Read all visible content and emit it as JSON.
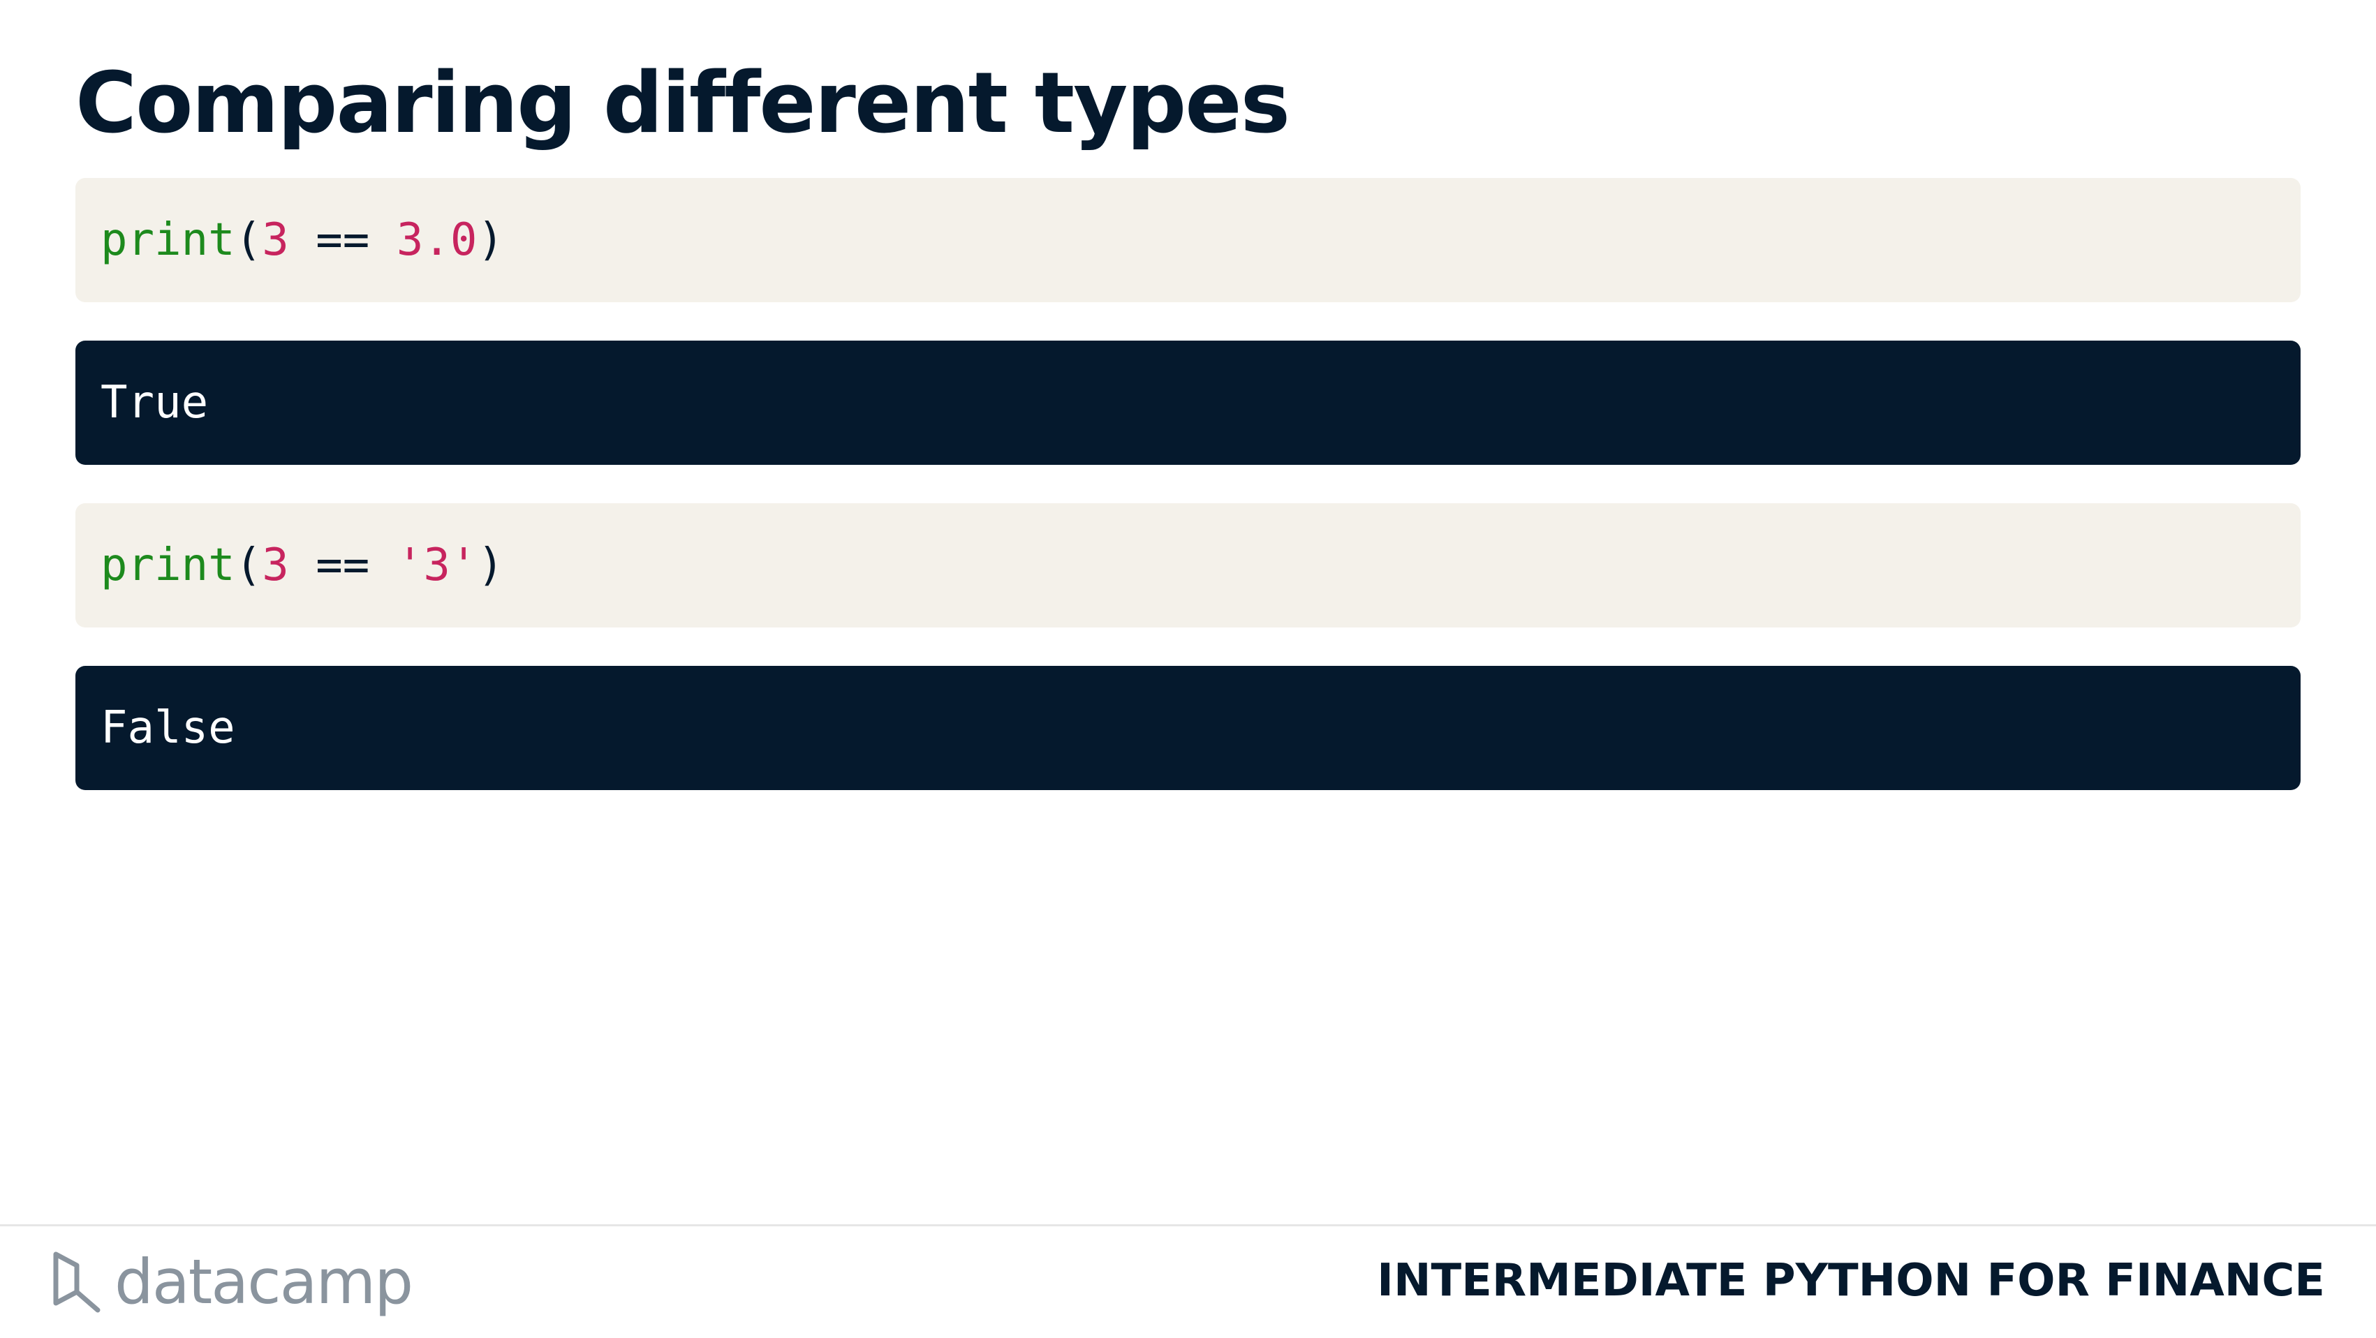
{
  "slide": {
    "title": "Comparing different types"
  },
  "blocks": {
    "code_1": {
      "func": "print",
      "open": "(",
      "left": "3",
      "op": " == ",
      "right": "3.0",
      "close": ")"
    },
    "output_1": "True",
    "code_2": {
      "func": "print",
      "open": "(",
      "left": "3",
      "op": " == ",
      "right": "'3'",
      "close": ")"
    },
    "output_2": "False"
  },
  "footer": {
    "logo_text": "datacamp",
    "course_title": "INTERMEDIATE PYTHON FOR FINANCE"
  },
  "colors": {
    "title": "#05192d",
    "code_bg": "#f4f1ea",
    "output_bg": "#05192d",
    "func": "#1d8a1d",
    "literal": "#c7245e",
    "logo": "#8a949e"
  },
  "icons": {
    "logo": "datacamp-logo-icon"
  }
}
